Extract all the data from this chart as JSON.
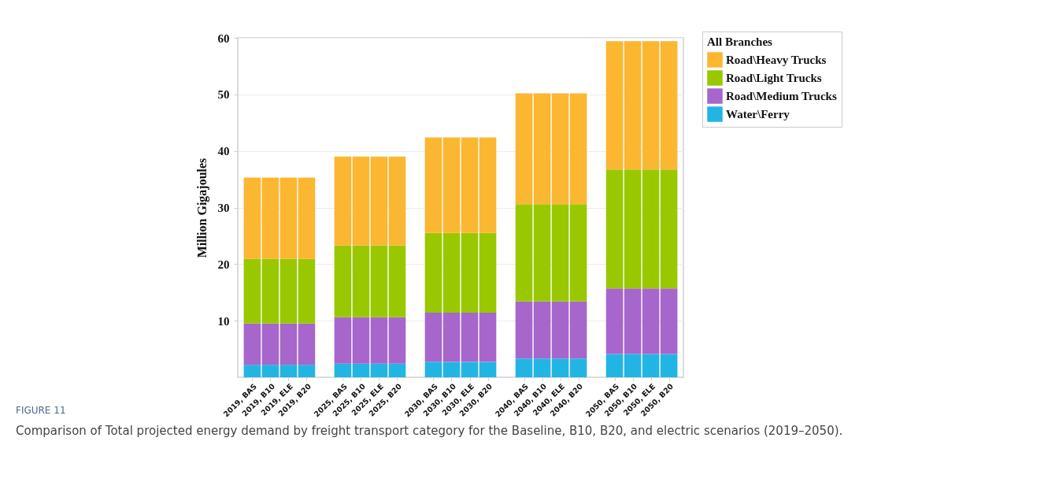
{
  "chart_data": {
    "type": "bar",
    "stacked": true,
    "ylabel": "Million Gigajoules",
    "legend_title": "All Branches",
    "legend": "right",
    "grid": "y",
    "categories": [
      "2019, BAS",
      "2019, B10",
      "2019, ELE",
      "2019, B20",
      "2025, BAS",
      "2025, B10",
      "2025, ELE",
      "2025, B20",
      "2030, BAS",
      "2030, B10",
      "2030, ELE",
      "2030, B20",
      "2040, BAS",
      "2040, B10",
      "2040, ELE",
      "2040, B20",
      "2050, BAS",
      "2050, B10",
      "2050, ELE",
      "2050, B20"
    ],
    "series": [
      {
        "name": "Water\\Ferry",
        "color": "#22b5e3",
        "values": [
          2.2,
          2.2,
          2.2,
          2.2,
          2.4,
          2.4,
          2.4,
          2.4,
          2.7,
          2.7,
          2.7,
          2.7,
          3.3,
          3.3,
          3.3,
          3.3,
          4.1,
          4.1,
          4.1,
          4.1
        ]
      },
      {
        "name": "Road\\Medium Trucks",
        "color": "#a666cc",
        "values": [
          7.3,
          7.3,
          7.3,
          7.3,
          8.2,
          8.2,
          8.2,
          8.2,
          8.7,
          8.7,
          8.7,
          8.7,
          10.1,
          10.1,
          10.1,
          10.1,
          11.6,
          11.6,
          11.6,
          11.6
        ]
      },
      {
        "name": "Road\\Light Trucks",
        "color": "#99c800",
        "values": [
          11.4,
          11.4,
          11.4,
          11.4,
          12.7,
          12.7,
          12.7,
          12.7,
          14.1,
          14.1,
          14.1,
          14.1,
          17.2,
          17.2,
          17.2,
          17.2,
          21.0,
          21.0,
          21.0,
          21.0
        ]
      },
      {
        "name": "Road\\Heavy Trucks",
        "color": "#fbb731",
        "values": [
          14.4,
          14.4,
          14.4,
          14.4,
          15.7,
          15.7,
          15.7,
          15.7,
          16.9,
          16.9,
          16.9,
          16.9,
          19.6,
          19.6,
          19.6,
          19.6,
          22.7,
          22.7,
          22.7,
          22.7
        ]
      }
    ],
    "ylim": [
      0,
      60
    ],
    "yticks": [
      10,
      20,
      30,
      40,
      50,
      60
    ],
    "annotations": [
      "FIGURE 11",
      "Comparison of Total projected energy demand by freight transport category for the Baseline, B10, B20, and electric scenarios (2019–2050)."
    ]
  }
}
